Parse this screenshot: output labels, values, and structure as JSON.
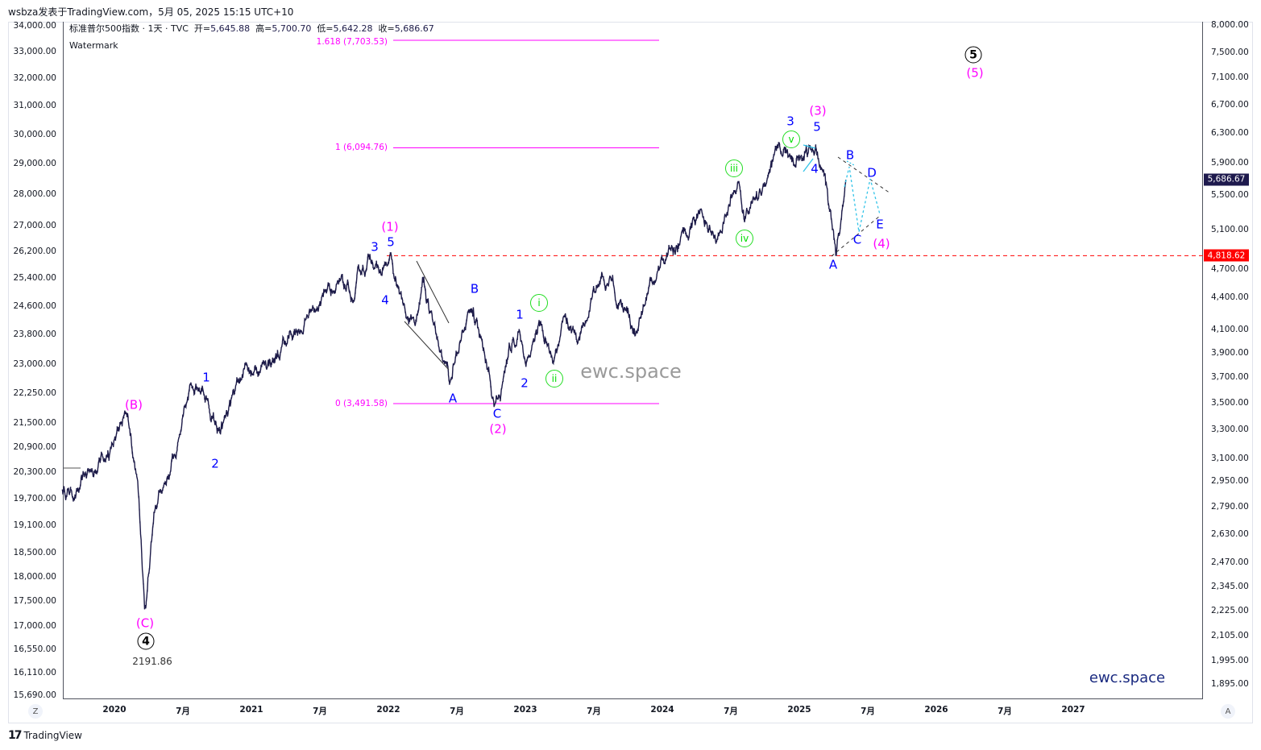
{
  "header": {
    "published_by": "wsbza发表于TradingView.com，5月 05, 2025 15:15 UTC+10"
  },
  "legend": {
    "symbol": "标准普尔500指数 · 1天 · TVC",
    "open_label": "开=",
    "open": "5,645.88",
    "high_label": "高=",
    "high": "5,700.70",
    "low_label": "低=",
    "low": "5,642.28",
    "close_label": "收=",
    "close": "5,686.67",
    "watermark_label": "Watermark"
  },
  "colors": {
    "price": "#1c1a48",
    "fib": "#ff00ff",
    "wave_blue": "#0000ff",
    "wave_magenta": "#ff00ff",
    "wave_green": "#22dd22",
    "current_badge": "#1e1a4d",
    "support_badge": "#ff0000",
    "cyan": "#33c4e8"
  },
  "badges": {
    "current_price": "5,686.67",
    "support_level": "4,818.62"
  },
  "fib_levels": [
    {
      "label": "1.618 (7,703.53)",
      "value": 7703.53
    },
    {
      "label": "1 (6,094.76)",
      "value": 6094.76
    },
    {
      "label": "0 (3,491.58)",
      "value": 3491.58
    }
  ],
  "wave_labels": {
    "B_primary": "(B)",
    "C_primary": "(C)",
    "four_circled": "4",
    "low_value": "2191.86",
    "w1_2020": "1",
    "w2_2020": "2",
    "one_major": "(1)",
    "w3_2021": "3",
    "w5_2021": "5",
    "w4_2021": "4",
    "A_2022": "A",
    "B_2022": "B",
    "C_2022": "C",
    "two_major": "(2)",
    "w1_2023": "1",
    "w2_2023": "2",
    "i": "i",
    "ii": "ii",
    "iii": "iii",
    "iv": "iv",
    "v": "v",
    "w3_2024": "3",
    "w5_2025": "5",
    "three_major": "(3)",
    "w4_2025": "4",
    "A_2025": "A",
    "B_2025": "B",
    "C_2025": "C",
    "D_2025": "D",
    "E_2025": "E",
    "four_major": "(4)",
    "five_circled": "5",
    "five_major": "(5)"
  },
  "watermarks": {
    "center": "ewc.space",
    "bottom_right": "ewc.space"
  },
  "axis_buttons": {
    "left": "Z",
    "right": "A"
  },
  "footer": {
    "brand": "TradingView",
    "logo": "17"
  },
  "chart_data": {
    "type": "line",
    "title": "标准普尔500指数 · 1天 · TVC",
    "scale": "log",
    "series": [
      {
        "name": "S&P 500 daily (approx.)",
        "x": [
          2019.62,
          2019.8,
          2020.0,
          2020.1,
          2020.17,
          2020.22,
          2020.3,
          2020.45,
          2020.65,
          2020.75,
          2020.85,
          2021.0,
          2021.25,
          2021.5,
          2021.62,
          2021.75,
          2021.9,
          2022.01,
          2022.1,
          2022.2,
          2022.25,
          2022.33,
          2022.45,
          2022.53,
          2022.62,
          2022.7,
          2022.78,
          2022.85,
          2022.95,
          2023.0,
          2023.1,
          2023.2,
          2023.3,
          2023.38,
          2023.45,
          2023.55,
          2023.7,
          2023.82,
          2023.9,
          2024.0,
          2024.15,
          2024.3,
          2024.4,
          2024.55,
          2024.6,
          2024.75,
          2024.9,
          2024.97,
          2025.05,
          2025.12,
          2025.2,
          2025.27,
          2025.34
        ],
        "values": [
          2890,
          3000,
          3230,
          3390,
          2950,
          2237,
          2800,
          3100,
          3580,
          3280,
          3500,
          3750,
          3980,
          4350,
          4530,
          4360,
          4700,
          4818,
          4400,
          4170,
          4600,
          4150,
          3670,
          4000,
          4300,
          3900,
          3491,
          3750,
          4080,
          3810,
          4180,
          3810,
          4170,
          3990,
          4180,
          4580,
          4350,
          4100,
          4500,
          4770,
          5100,
          5250,
          5000,
          5660,
          5190,
          5600,
          6090,
          5870,
          6100,
          6140,
          5600,
          4835,
          5686.67
        ]
      }
    ],
    "y_right_ticks": [
      "8,000.00",
      "7,500.00",
      "7,100.00",
      "6,700.00",
      "6,300.00",
      "5,900.00",
      "5,500.00",
      "5,100.00",
      "4,700.00",
      "4,400.00",
      "4,100.00",
      "3,900.00",
      "3,700.00",
      "3,500.00",
      "3,300.00",
      "3,100.00",
      "2,950.00",
      "2,790.00",
      "2,630.00",
      "2,470.00",
      "2,345.00",
      "2,225.00",
      "2,105.00",
      "1,995.00",
      "1,895.00"
    ],
    "y_left_ticks": [
      "34,000.00",
      "33,000.00",
      "32,000.00",
      "31,000.00",
      "30,000.00",
      "29,000.00",
      "28,000.00",
      "27,000.00",
      "26,200.00",
      "25,400.00",
      "24,600.00",
      "23,800.00",
      "23,000.00",
      "22,250.00",
      "21,500.00",
      "20,900.00",
      "20,300.00",
      "19,700.00",
      "19,100.00",
      "18,500.00",
      "18,000.00",
      "17,500.00",
      "17,000.00",
      "16,550.00",
      "16,110.00",
      "15,690.00"
    ],
    "x_ticks": [
      {
        "label": "2020",
        "t": 2020.0
      },
      {
        "label": "7月",
        "t": 2020.5
      },
      {
        "label": "2021",
        "t": 2021.0
      },
      {
        "label": "7月",
        "t": 2021.5
      },
      {
        "label": "2022",
        "t": 2022.0
      },
      {
        "label": "7月",
        "t": 2022.5
      },
      {
        "label": "2023",
        "t": 2023.0
      },
      {
        "label": "7月",
        "t": 2023.5
      },
      {
        "label": "2024",
        "t": 2024.0
      },
      {
        "label": "7月",
        "t": 2024.5
      },
      {
        "label": "2025",
        "t": 2025.0
      },
      {
        "label": "7月",
        "t": 2025.5
      },
      {
        "label": "2026",
        "t": 2026.0
      },
      {
        "label": "7月",
        "t": 2026.5
      },
      {
        "label": "2027",
        "t": 2027.0
      }
    ],
    "horizontal_levels": [
      {
        "value": 4818.62,
        "style": "dashed",
        "color": "#ff0000"
      }
    ],
    "xlabel": "",
    "ylabel": "",
    "ylim": [
      1850,
      8050
    ],
    "grid": false
  }
}
